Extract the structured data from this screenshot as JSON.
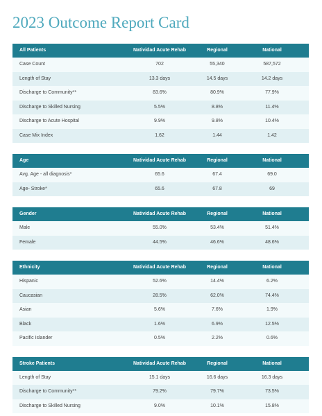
{
  "title": "2023 Outcome Report Card",
  "tables": [
    {
      "header": [
        "All Patients",
        "Natividad Acute Rehab",
        "Regional",
        "National"
      ],
      "rows": [
        [
          "Case Count",
          "702",
          "55,340",
          "587,572"
        ],
        [
          "Length of Stay",
          "13.3 days",
          "14.5 days",
          "14.2 days"
        ],
        [
          "Discharge to Community**",
          "83.6%",
          "80.9%",
          "77.9%"
        ],
        [
          "Discharge to Skilled Nursing",
          "5.5%",
          "8.8%",
          "11.4%"
        ],
        [
          "Discharge to Acute Hospital",
          "9.9%",
          "9.8%",
          "10.4%"
        ],
        [
          "Case Mix Index",
          "1.62",
          "1.44",
          "1.42"
        ]
      ]
    },
    {
      "header": [
        "Age",
        "Natividad Acute Rehab",
        "Regional",
        "National"
      ],
      "rows": [
        [
          "Avg. Age - all diagnosis*",
          "65.6",
          "67.4",
          "69.0"
        ],
        [
          "Age- Stroke*",
          "65.6",
          "67.8",
          "69"
        ]
      ]
    },
    {
      "header": [
        "Gender",
        "Natividad Acute Rehab",
        "Regional",
        "National"
      ],
      "rows": [
        [
          "Male",
          "55.0%",
          "53.4%",
          "51.4%"
        ],
        [
          "Female",
          "44.5%",
          "46.6%",
          "48.6%"
        ]
      ]
    },
    {
      "header": [
        "Ethnicity",
        "Natividad Acute Rehab",
        "Regional",
        "National"
      ],
      "rows": [
        [
          "Hispanic",
          "52.6%",
          "14.4%",
          "6.2%"
        ],
        [
          "Caucasian",
          "28.5%",
          "62.0%",
          "74.4%"
        ],
        [
          "Asian",
          "5.6%",
          "7.6%",
          "1.9%"
        ],
        [
          "Black",
          "1.6%",
          "6.9%",
          "12.5%"
        ],
        [
          "Pacific Islander",
          "0.5%",
          "2.2%",
          "0.6%"
        ]
      ]
    },
    {
      "header": [
        "Stroke Patients",
        "Natividad Acute Rehab",
        "Regional",
        "National"
      ],
      "rows": [
        [
          "Length of Stay",
          "15.1 days",
          "16.6 days",
          "16.3 days"
        ],
        [
          "Discharge to Community**",
          "79.2%",
          "79.7%",
          "73.5%"
        ],
        [
          "Discharge to Skilled Nursing",
          "9.0%",
          "10.1%",
          "15.8%"
        ]
      ]
    }
  ]
}
